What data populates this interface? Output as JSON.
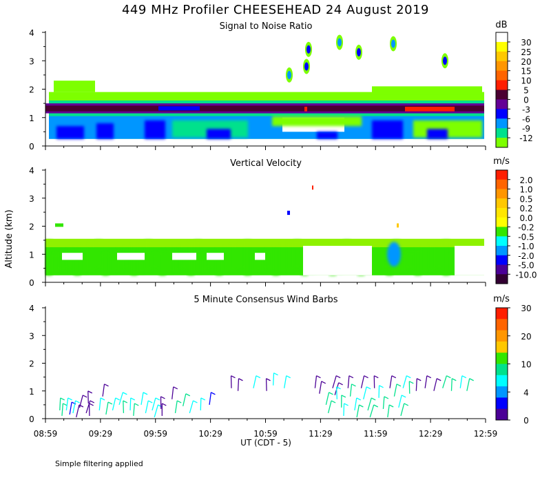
{
  "title": "449 MHz Profiler CHEESEHEAD 24 August 2019",
  "footnote": "Simple filtering applied",
  "y_axis_label": "Altitude (km)",
  "chart_data": [
    {
      "type": "heatmap",
      "title": "Signal to Noise Ratio",
      "unit": "dB",
      "ylabel": "Altitude (km)",
      "ylim": [
        0,
        4
      ],
      "yticks": [
        "0",
        "1",
        "2",
        "3",
        "4"
      ],
      "colorbar": {
        "labels": [
          "30",
          "25",
          "20",
          "15",
          "10",
          "5",
          "0",
          "-3",
          "-6",
          "-9",
          "-12"
        ],
        "colors": [
          "#ffffff",
          "#ffff00",
          "#ffc800",
          "#ff9600",
          "#ff6400",
          "#ff1e00",
          "#4b0032",
          "#640096",
          "#0000ff",
          "#0096ff",
          "#00e18c",
          "#7dff00"
        ]
      }
    },
    {
      "type": "heatmap",
      "title": "Vertical Velocity",
      "unit": "m/s",
      "ylabel": "Altitude (km)",
      "ylim": [
        0,
        4
      ],
      "yticks": [
        "0",
        "1",
        "2",
        "3",
        "4"
      ],
      "colorbar": {
        "labels": [
          "2.0",
          "1.0",
          "0.5",
          "0.2",
          "0.0",
          "-0.2",
          "-0.5",
          "-1.0",
          "-2.0",
          "-5.0",
          "-10.0"
        ],
        "colors": [
          "#ff1e00",
          "#ff6400",
          "#ff9600",
          "#ffc800",
          "#ffe600",
          "#ffff00",
          "#32e600",
          "#00ffff",
          "#0096ff",
          "#0000ff",
          "#4b0096",
          "#320032"
        ]
      }
    },
    {
      "type": "scatter",
      "title": "5 Minute Consensus Wind Barbs",
      "unit": "m/s",
      "ylabel": "Altitude (km)",
      "ylim": [
        0,
        4
      ],
      "yticks": [
        "0",
        "1",
        "2",
        "3",
        "4"
      ],
      "colorbar": {
        "labels": [
          "30",
          "20",
          "10",
          "4",
          "0"
        ],
        "colors": [
          "#ff1e00",
          "#ff6400",
          "#ff9600",
          "#ffc800",
          "#32e600",
          "#00e18c",
          "#00ffff",
          "#0096ff",
          "#0000ff",
          "#4b0096"
        ]
      },
      "barbs": [
        {
          "t": 0.4,
          "alt": 0.3,
          "speed": 8
        },
        {
          "t": 0.5,
          "alt": 0.1,
          "speed": 8
        },
        {
          "t": 0.7,
          "alt": 0.3,
          "speed": 6
        },
        {
          "t": 0.85,
          "alt": 0.15,
          "speed": 5
        },
        {
          "t": 1.0,
          "alt": 0.2,
          "speed": 7
        },
        {
          "t": 1.15,
          "alt": 0.05,
          "speed": 3
        },
        {
          "t": 1.3,
          "alt": 0.4,
          "speed": 3
        },
        {
          "t": 1.6,
          "alt": 0.2,
          "speed": 2
        },
        {
          "t": 1.7,
          "alt": 0.55,
          "speed": 3
        },
        {
          "t": 1.75,
          "alt": 0.1,
          "speed": 2
        },
        {
          "t": 2.2,
          "alt": 0.3,
          "speed": 7
        },
        {
          "t": 2.35,
          "alt": 0.8,
          "speed": 2
        },
        {
          "t": 2.5,
          "alt": 0.15,
          "speed": 8
        },
        {
          "t": 2.8,
          "alt": 0.3,
          "speed": 7
        },
        {
          "t": 3.1,
          "alt": 0.5,
          "speed": 7
        },
        {
          "t": 3.3,
          "alt": 0.2,
          "speed": 8
        },
        {
          "t": 3.6,
          "alt": 0.3,
          "speed": 7
        },
        {
          "t": 3.75,
          "alt": 0.1,
          "speed": 8
        },
        {
          "t": 4.1,
          "alt": 0.5,
          "speed": 7
        },
        {
          "t": 4.3,
          "alt": 0.2,
          "speed": 7
        },
        {
          "t": 4.6,
          "alt": 0.3,
          "speed": 6
        },
        {
          "t": 4.7,
          "alt": 0.05,
          "speed": 7
        },
        {
          "t": 5.0,
          "alt": 0.35,
          "speed": 2
        },
        {
          "t": 5.05,
          "alt": 0.1,
          "speed": 2
        },
        {
          "t": 5.5,
          "alt": 0.7,
          "speed": 3
        },
        {
          "t": 5.65,
          "alt": 0.2,
          "speed": 8
        },
        {
          "t": 6.0,
          "alt": 0.45,
          "speed": 8
        },
        {
          "t": 6.3,
          "alt": 0.2,
          "speed": 7
        },
        {
          "t": 6.8,
          "alt": 0.3,
          "speed": 7
        },
        {
          "t": 7.2,
          "alt": 0.5,
          "speed": 5
        },
        {
          "t": 8.2,
          "alt": 1.1,
          "speed": 3
        },
        {
          "t": 8.5,
          "alt": 1.0,
          "speed": 3
        },
        {
          "t": 9.2,
          "alt": 1.1,
          "speed": 7
        },
        {
          "t": 9.8,
          "alt": 1.0,
          "speed": 3
        },
        {
          "t": 10.1,
          "alt": 1.2,
          "speed": 6
        },
        {
          "t": 10.6,
          "alt": 1.1,
          "speed": 7
        },
        {
          "t": 12.0,
          "alt": 1.1,
          "speed": 3
        },
        {
          "t": 12.2,
          "alt": 0.9,
          "speed": 3
        },
        {
          "t": 12.5,
          "alt": 0.5,
          "speed": 8
        },
        {
          "t": 12.6,
          "alt": 0.2,
          "speed": 8
        },
        {
          "t": 12.8,
          "alt": 1.1,
          "speed": 3
        },
        {
          "t": 12.9,
          "alt": 0.85,
          "speed": 3
        },
        {
          "t": 13.0,
          "alt": 0.7,
          "speed": 7
        },
        {
          "t": 13.2,
          "alt": 0.4,
          "speed": 8
        },
        {
          "t": 13.3,
          "alt": 0.1,
          "speed": 7
        },
        {
          "t": 13.5,
          "alt": 1.1,
          "speed": 3
        },
        {
          "t": 13.6,
          "alt": 0.8,
          "speed": 8
        },
        {
          "t": 13.8,
          "alt": 0.3,
          "speed": 7
        },
        {
          "t": 13.9,
          "alt": 0.05,
          "speed": 8
        },
        {
          "t": 14.1,
          "alt": 1.1,
          "speed": 3
        },
        {
          "t": 14.2,
          "alt": 0.7,
          "speed": 7
        },
        {
          "t": 14.4,
          "alt": 0.3,
          "speed": 8
        },
        {
          "t": 14.5,
          "alt": 0.05,
          "speed": 8
        },
        {
          "t": 14.7,
          "alt": 1.1,
          "speed": 3
        },
        {
          "t": 14.9,
          "alt": 0.75,
          "speed": 7
        },
        {
          "t": 15.1,
          "alt": 0.35,
          "speed": 8
        },
        {
          "t": 15.3,
          "alt": 0.05,
          "speed": 8
        },
        {
          "t": 15.4,
          "alt": 1.1,
          "speed": 3
        },
        {
          "t": 15.6,
          "alt": 0.8,
          "speed": 8
        },
        {
          "t": 15.8,
          "alt": 0.4,
          "speed": 7
        },
        {
          "t": 15.9,
          "alt": 0.1,
          "speed": 8
        },
        {
          "t": 16.0,
          "alt": 1.1,
          "speed": 6
        },
        {
          "t": 16.3,
          "alt": 0.9,
          "speed": 8
        },
        {
          "t": 16.6,
          "alt": 1.0,
          "speed": 3
        },
        {
          "t": 17.0,
          "alt": 1.1,
          "speed": 3
        },
        {
          "t": 17.4,
          "alt": 1.0,
          "speed": 3
        },
        {
          "t": 17.8,
          "alt": 1.1,
          "speed": 8
        },
        {
          "t": 18.2,
          "alt": 1.0,
          "speed": 8
        },
        {
          "t": 18.6,
          "alt": 1.1,
          "speed": 7
        },
        {
          "t": 18.9,
          "alt": 1.0,
          "speed": 8
        }
      ]
    }
  ],
  "x_axis": {
    "label": "UT  (CDT - 5)",
    "ticks": [
      "08:59",
      "09:29",
      "09:59",
      "10:29",
      "10:59",
      "11:29",
      "11:59",
      "12:29",
      "12:59"
    ],
    "tick_minutes": [
      0,
      30,
      60,
      90,
      120,
      150,
      180,
      210,
      240
    ]
  }
}
